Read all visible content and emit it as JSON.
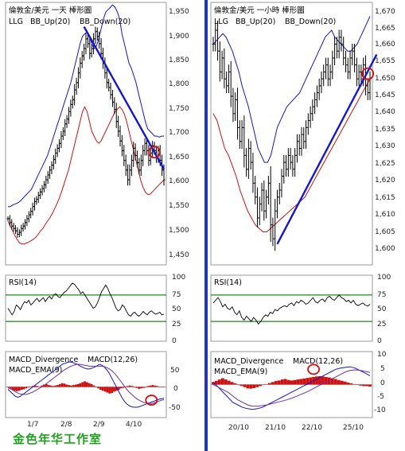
{
  "watermark": "金色年华工作室",
  "colors": {
    "price": "#000000",
    "up": "#1515d0",
    "down": "#d01010",
    "green": "#1a8a1a",
    "trend": "#1515d0"
  },
  "chart_data": [
    {
      "type": "line",
      "title": "倫敦金/美元 一天 棒形圖",
      "legend": [
        "LLG",
        "BB_Up(20)",
        "BB_Down(20)"
      ],
      "x_ticks": [
        "1/7",
        "2/8",
        "2/9",
        "4/10"
      ],
      "y_ticks": [
        "1,950",
        "1,900",
        "1,850",
        "1,800",
        "1,750",
        "1,700",
        "1,650",
        "1,600",
        "1,550",
        "1,500",
        "1,450"
      ],
      "ylim": [
        1425,
        1965
      ],
      "close": [
        1520,
        1512,
        1505,
        1500,
        1495,
        1488,
        1492,
        1500,
        1505,
        1512,
        1520,
        1528,
        1535,
        1545,
        1555,
        1560,
        1568,
        1575,
        1582,
        1590,
        1600,
        1610,
        1620,
        1630,
        1642,
        1655,
        1665,
        1675,
        1690,
        1700,
        1715,
        1725,
        1740,
        1755,
        1765,
        1785,
        1800,
        1820,
        1840,
        1855,
        1870,
        1890,
        1880,
        1860,
        1870,
        1890,
        1905,
        1895,
        1880,
        1860,
        1840,
        1820,
        1800,
        1790,
        1775,
        1760,
        1745,
        1720,
        1700,
        1680,
        1660,
        1640,
        1620,
        1600,
        1620,
        1640,
        1665,
        1650,
        1635,
        1620,
        1640,
        1660,
        1675,
        1660,
        1640,
        1655,
        1670,
        1660,
        1645,
        1660,
        1640,
        1620,
        1600
      ],
      "bb_up": [
        1545,
        1545,
        1548,
        1550,
        1552,
        1555,
        1560,
        1565,
        1570,
        1575,
        1580,
        1590,
        1600,
        1610,
        1620,
        1630,
        1640,
        1650,
        1665,
        1680,
        1695,
        1710,
        1725,
        1740,
        1755,
        1770,
        1785,
        1800,
        1820,
        1840,
        1860,
        1880,
        1895,
        1900,
        1905,
        1895,
        1880,
        1870,
        1875,
        1890,
        1910,
        1930,
        1945,
        1950,
        1955,
        1960,
        1955,
        1945,
        1930,
        1900,
        1880,
        1860,
        1840,
        1830,
        1815,
        1800,
        1780,
        1760,
        1740,
        1720,
        1705,
        1700,
        1695,
        1690,
        1690,
        1688,
        1690,
        1690
      ],
      "bb_down": [
        1515,
        1505,
        1495,
        1485,
        1477,
        1470,
        1468,
        1468,
        1470,
        1472,
        1475,
        1478,
        1482,
        1488,
        1495,
        1500,
        1508,
        1515,
        1522,
        1530,
        1540,
        1550,
        1562,
        1575,
        1590,
        1605,
        1620,
        1640,
        1660,
        1680,
        1700,
        1720,
        1740,
        1750,
        1740,
        1720,
        1700,
        1690,
        1680,
        1675,
        1680,
        1690,
        1700,
        1710,
        1720,
        1730,
        1740,
        1745,
        1750,
        1745,
        1735,
        1720,
        1700,
        1680,
        1660,
        1640,
        1620,
        1600,
        1585,
        1575,
        1570,
        1570,
        1575,
        1580,
        1585,
        1590,
        1595,
        1600
      ],
      "trendline": [
        [
          40,
          1915
        ],
        [
          82,
          1622
        ]
      ],
      "highlight": [
        77,
        1657
      ],
      "rsi": {
        "label": "RSI(14)",
        "ylim": [
          0,
          100
        ],
        "y_ticks": [
          "100",
          "75",
          "50",
          "25",
          "0"
        ],
        "levels": [
          70,
          30
        ],
        "values": [
          50,
          45,
          40,
          45,
          55,
          52,
          48,
          55,
          60,
          58,
          62,
          55,
          58,
          62,
          65,
          60,
          63,
          66,
          60,
          65,
          68,
          64,
          70,
          72,
          68,
          66,
          70,
          74,
          76,
          80,
          84,
          88,
          86,
          82,
          78,
          72,
          75,
          70,
          65,
          60,
          55,
          50,
          52,
          58,
          66,
          75,
          80,
          85,
          80,
          72,
          66,
          58,
          50,
          46,
          48,
          55,
          52,
          45,
          40,
          38,
          42,
          44,
          40,
          38,
          41,
          45,
          42,
          40,
          44,
          46,
          43,
          41,
          42,
          44,
          40,
          41
        ]
      },
      "macd": {
        "label": [
          "MACD_Divergence",
          "MACD(12,26)",
          "MACD_EMA(9)"
        ],
        "ylim": [
          -65,
          75
        ],
        "y_ticks": [
          "50",
          "0",
          "-50"
        ],
        "divergence": [
          0,
          -3,
          -6,
          -8,
          -9,
          -8,
          -6,
          -5,
          -3,
          -1,
          1,
          2,
          3,
          2,
          1,
          3,
          5,
          6,
          4,
          3,
          2,
          3,
          4,
          6,
          8,
          7,
          5,
          4,
          3,
          4,
          5,
          6,
          8,
          10,
          12,
          10,
          8,
          6,
          3,
          0,
          -3,
          -6,
          -8,
          -10,
          -12,
          -14,
          -13,
          -10,
          -8,
          -6,
          -3,
          -2,
          -1,
          2,
          3,
          2,
          0,
          -2,
          -4,
          -3,
          -2,
          0,
          2,
          3,
          4,
          3,
          2,
          1,
          0,
          1
        ],
        "macd_line": [
          -5,
          -10,
          -15,
          -20,
          -22,
          -20,
          -16,
          -12,
          -8,
          -4,
          0,
          4,
          8,
          12,
          16,
          20,
          24,
          28,
          32,
          36,
          40,
          44,
          48,
          50,
          52,
          53,
          52,
          50,
          48,
          45,
          42,
          40,
          38,
          38,
          40,
          42,
          45,
          48,
          46,
          42,
          36,
          28,
          18,
          8,
          -2,
          -12,
          -22,
          -30,
          -36,
          -40,
          -42,
          -43,
          -43,
          -42,
          -40,
          -38,
          -36,
          -34,
          -32,
          -30,
          -28,
          -26,
          -25,
          -24
        ],
        "ema_line": [
          -2,
          -4,
          -7,
          -10,
          -13,
          -15,
          -16,
          -16,
          -15,
          -13,
          -11,
          -8,
          -5,
          -2,
          2,
          5,
          9,
          13,
          17,
          21,
          25,
          29,
          33,
          37,
          40,
          43,
          45,
          47,
          48,
          48,
          47,
          46,
          45,
          44,
          44,
          44,
          44,
          44,
          44,
          43,
          41,
          38,
          34,
          29,
          23,
          16,
          9,
          2,
          -5,
          -11,
          -16,
          -21,
          -25,
          -28,
          -31,
          -33,
          -34,
          -35,
          -35,
          -34,
          -32,
          -30,
          -28,
          -27
        ],
        "highlight": [
          92,
          -28
        ]
      }
    },
    {
      "type": "line",
      "title": "倫敦金/美元 一小時 棒形圖",
      "legend": [
        "LLG",
        "BB_Up(20)",
        "BB_Down(20)"
      ],
      "x_ticks": [
        "20/10",
        "21/10",
        "22/10",
        "25/10"
      ],
      "y_ticks": [
        "1,670",
        "1,665",
        "1,660",
        "1,655",
        "1,650",
        "1,645",
        "1,640",
        "1,635",
        "1,630",
        "1,625",
        "1,620",
        "1,615",
        "1,610",
        "1,605",
        "1,600"
      ],
      "ylim": [
        1596.5,
        1672
      ],
      "close": [
        1660,
        1664,
        1658,
        1652,
        1656,
        1650,
        1648,
        1652,
        1645,
        1640,
        1644,
        1636,
        1632,
        1636,
        1628,
        1624,
        1630,
        1626,
        1620,
        1616,
        1610,
        1614,
        1618,
        1612,
        1616,
        1620,
        1608,
        1604,
        1612,
        1616,
        1618,
        1622,
        1626,
        1624,
        1628,
        1626,
        1624,
        1628,
        1632,
        1630,
        1634,
        1632,
        1636,
        1638,
        1640,
        1642,
        1644,
        1646,
        1648,
        1650,
        1652,
        1654,
        1650,
        1652,
        1656,
        1660,
        1658,
        1662,
        1660,
        1656,
        1654,
        1652,
        1656,
        1658,
        1654,
        1650,
        1652,
        1650,
        1654,
        1648,
        1646,
        1650
      ],
      "bb_up": [
        1660,
        1661,
        1662,
        1663,
        1662,
        1660,
        1658,
        1655,
        1652,
        1648,
        1645,
        1642,
        1638,
        1634,
        1630,
        1628,
        1626,
        1626,
        1628,
        1632,
        1636,
        1638,
        1640,
        1642,
        1643,
        1644,
        1645,
        1646,
        1648,
        1650,
        1652,
        1654,
        1656,
        1658,
        1660,
        1662,
        1663,
        1664,
        1662,
        1661,
        1660,
        1659,
        1658,
        1658,
        1659,
        1660,
        1662,
        1664,
        1666,
        1668
      ],
      "bb_down": [
        1640,
        1638,
        1634,
        1630,
        1628,
        1625,
        1622,
        1618,
        1615,
        1612,
        1610,
        1608,
        1607,
        1606,
        1606,
        1607,
        1608,
        1609,
        1610,
        1611,
        1612,
        1613,
        1614,
        1615,
        1616,
        1618,
        1620,
        1622,
        1624,
        1626,
        1628,
        1630,
        1632,
        1634,
        1636,
        1638,
        1640,
        1642,
        1644,
        1646,
        1648,
        1650
      ],
      "trendline": [
        [
          29,
          1602.5
        ],
        [
          74,
          1657
        ]
      ],
      "highlight": [
        70,
        1651.5
      ],
      "rsi": {
        "label": "RSI(14)",
        "ylim": [
          0,
          100
        ],
        "y_ticks": [
          "100",
          "75",
          "50",
          "25",
          "0"
        ],
        "levels": [
          70,
          30
        ],
        "values": [
          58,
          62,
          66,
          60,
          52,
          56,
          50,
          48,
          52,
          44,
          40,
          46,
          36,
          32,
          38,
          34,
          30,
          36,
          32,
          26,
          30,
          36,
          40,
          38,
          44,
          42,
          48,
          46,
          50,
          52,
          54,
          52,
          56,
          58,
          54,
          60,
          58,
          62,
          60,
          56,
          58,
          62,
          66,
          60,
          58,
          62,
          64,
          60,
          66,
          68,
          64,
          62,
          66,
          70,
          66,
          64,
          60,
          62,
          58,
          62,
          56,
          54,
          56,
          58,
          55,
          53,
          56
        ]
      },
      "macd": {
        "label": [
          "MACD_Divergence",
          "MACD(12,26)",
          "MACD_EMA(9)"
        ],
        "ylim": [
          -13,
          13
        ],
        "y_ticks": [
          "10",
          "5",
          "0",
          "-5",
          "-10"
        ],
        "divergence": [
          1,
          1.5,
          2,
          2.5,
          2,
          1.5,
          1,
          0.5,
          0,
          -0.5,
          -1,
          -1.5,
          -1.6,
          -1.4,
          -1,
          -0.6,
          -0.2,
          0.2,
          0.6,
          1,
          1.4,
          1.6,
          2,
          2.2,
          1.8,
          1.6,
          1.8,
          2,
          2.2,
          2.4,
          2.6,
          2.8,
          3,
          3.2,
          3.3,
          3.2,
          3,
          2.8,
          2.5,
          2.2,
          1.8,
          1.5,
          1.2,
          0.8,
          0.5,
          0.2,
          -0.2,
          -0.4,
          -0.6,
          -0.6,
          -0.8
        ],
        "macd_line": [
          1,
          -1,
          -3,
          -5,
          -7,
          -8,
          -9,
          -9.5,
          -9.8,
          -9.5,
          -9,
          -8,
          -7,
          -6,
          -5,
          -4,
          -3,
          -2,
          -1,
          0,
          1,
          2,
          3,
          4,
          5,
          6,
          6.5,
          6.8,
          7,
          6.5,
          5.5,
          4.5,
          3.5
        ],
        "ema_line": [
          0,
          -1,
          -2,
          -3,
          -4.5,
          -6,
          -7,
          -8,
          -8.5,
          -8.5,
          -8.3,
          -8,
          -7.5,
          -7,
          -6.5,
          -6,
          -5.4,
          -4.6,
          -3.8,
          -3,
          -2,
          -1,
          0,
          1,
          2,
          3,
          4,
          5,
          5.6,
          5.8,
          5.6,
          5.2,
          4.8
        ],
        "highlight": [
          64,
          6
        ]
      }
    }
  ]
}
